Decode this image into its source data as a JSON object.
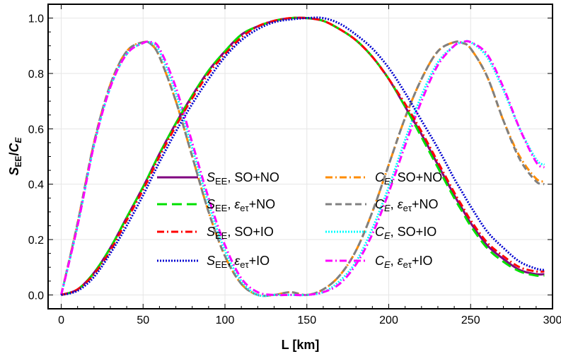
{
  "chart_data": {
    "type": "line",
    "xlabel": "L [km]",
    "ylabel_main": "S",
    "ylabel_main_sub": "EE",
    "ylabel_sep": "/",
    "ylabel_second": "C",
    "ylabel_second_sub": "E",
    "xlim": [
      -8,
      300
    ],
    "ylim": [
      -0.05,
      1.05
    ],
    "xticks": [
      0,
      50,
      100,
      150,
      200,
      250,
      300
    ],
    "yticks": [
      0.0,
      0.2,
      0.4,
      0.6,
      0.8,
      1.0
    ],
    "xtick_labels": [
      "0",
      "50",
      "100",
      "150",
      "200",
      "250",
      "300"
    ],
    "ytick_labels": [
      "0.0",
      "0.2",
      "0.4",
      "0.6",
      "0.8",
      "1.0"
    ],
    "grid": true,
    "legend_position": "lower-middle",
    "x": [
      0,
      10,
      20,
      30,
      40,
      50,
      55,
      60,
      70,
      80,
      90,
      100,
      110,
      120,
      130,
      140,
      150,
      160,
      170,
      180,
      190,
      200,
      210,
      220,
      230,
      240,
      245,
      250,
      260,
      270,
      280,
      290,
      295
    ],
    "series": [
      {
        "name": "SEE, SO+NO",
        "legend_main": "S",
        "legend_sub": "EE",
        "legend_rest": ", SO+NO",
        "color": "#800080",
        "dash": "solid",
        "values": [
          0.0,
          0.02,
          0.08,
          0.17,
          0.28,
          0.39,
          0.45,
          0.51,
          0.62,
          0.72,
          0.81,
          0.88,
          0.94,
          0.97,
          0.99,
          1.0,
          1.0,
          0.99,
          0.96,
          0.92,
          0.86,
          0.78,
          0.68,
          0.58,
          0.47,
          0.36,
          0.31,
          0.26,
          0.18,
          0.13,
          0.09,
          0.075,
          0.075
        ]
      },
      {
        "name": "SEE, εeτ+NO",
        "legend_main": "S",
        "legend_sub": "EE",
        "legend_rest_pre": ", ",
        "legend_eps": "ε",
        "legend_eps_sub": "eτ",
        "legend_rest": "+NO",
        "color": "#00e000",
        "dash": "long-dash",
        "values": [
          0.0,
          0.02,
          0.08,
          0.17,
          0.28,
          0.39,
          0.45,
          0.51,
          0.62,
          0.72,
          0.81,
          0.88,
          0.94,
          0.97,
          0.99,
          1.0,
          1.0,
          0.99,
          0.96,
          0.92,
          0.86,
          0.78,
          0.68,
          0.57,
          0.46,
          0.35,
          0.3,
          0.25,
          0.17,
          0.12,
          0.085,
          0.07,
          0.07
        ]
      },
      {
        "name": "SEE, SO+IO",
        "legend_main": "S",
        "legend_sub": "EE",
        "legend_rest": ", SO+IO",
        "color": "#ff0000",
        "dash": "dash-dot",
        "values": [
          0.0,
          0.02,
          0.075,
          0.16,
          0.27,
          0.38,
          0.44,
          0.5,
          0.61,
          0.71,
          0.8,
          0.87,
          0.93,
          0.97,
          0.99,
          1.0,
          1.0,
          0.99,
          0.96,
          0.92,
          0.86,
          0.78,
          0.69,
          0.59,
          0.48,
          0.37,
          0.32,
          0.27,
          0.19,
          0.14,
          0.1,
          0.085,
          0.085
        ]
      },
      {
        "name": "SEE, εeτ+IO",
        "legend_main": "S",
        "legend_sub": "EE",
        "legend_rest_pre": ", ",
        "legend_eps": "ε",
        "legend_eps_sub": "eτ",
        "legend_rest": "+IO",
        "color": "#0000d0",
        "dash": "dotted",
        "values": [
          0.0,
          0.015,
          0.065,
          0.15,
          0.25,
          0.36,
          0.42,
          0.48,
          0.59,
          0.69,
          0.78,
          0.86,
          0.92,
          0.96,
          0.985,
          0.995,
          1.0,
          1.0,
          0.98,
          0.94,
          0.89,
          0.82,
          0.73,
          0.63,
          0.53,
          0.42,
          0.37,
          0.32,
          0.23,
          0.17,
          0.12,
          0.095,
          0.09
        ]
      },
      {
        "name": "CE, SO+NO",
        "legend_main": "C",
        "legend_sub": "E",
        "legend_rest": ", SO+NO",
        "color": "#ff8c00",
        "dash": "dash-dot",
        "values": [
          0.0,
          0.26,
          0.55,
          0.76,
          0.88,
          0.913,
          0.905,
          0.86,
          0.7,
          0.5,
          0.3,
          0.14,
          0.04,
          0.0,
          0.0,
          0.01,
          0.0,
          0.02,
          0.07,
          0.16,
          0.3,
          0.47,
          0.64,
          0.78,
          0.88,
          0.913,
          0.91,
          0.89,
          0.79,
          0.63,
          0.5,
          0.42,
          0.41
        ]
      },
      {
        "name": "CE, εeτ+NO",
        "legend_main": "C",
        "legend_sub": "E",
        "legend_rest_pre": ", ",
        "legend_eps": "ε",
        "legend_eps_sub": "eτ",
        "legend_rest": "+NO",
        "color": "#808080",
        "dash": "dash",
        "values": [
          0.0,
          0.26,
          0.55,
          0.76,
          0.88,
          0.913,
          0.905,
          0.86,
          0.7,
          0.5,
          0.3,
          0.14,
          0.04,
          0.0,
          0.0,
          0.01,
          0.0,
          0.02,
          0.07,
          0.16,
          0.3,
          0.47,
          0.64,
          0.78,
          0.88,
          0.913,
          0.91,
          0.89,
          0.79,
          0.63,
          0.49,
          0.41,
          0.4
        ]
      },
      {
        "name": "CE, SO+IO",
        "legend_main": "C",
        "legend_sub": "E",
        "legend_rest": ", SO+IO",
        "color": "#00ffff",
        "dash": "dotted",
        "values": [
          0.0,
          0.25,
          0.54,
          0.75,
          0.87,
          0.91,
          0.91,
          0.88,
          0.73,
          0.53,
          0.33,
          0.16,
          0.05,
          0.0,
          0.0,
          0.0,
          0.0,
          0.01,
          0.05,
          0.12,
          0.24,
          0.39,
          0.56,
          0.72,
          0.84,
          0.9,
          0.912,
          0.913,
          0.86,
          0.74,
          0.6,
          0.49,
          0.47
        ]
      },
      {
        "name": "CE, εeτ+IO",
        "legend_main": "C",
        "legend_sub": "E",
        "legend_rest_pre": ", ",
        "legend_eps": "ε",
        "legend_eps_sub": "eτ",
        "legend_rest": "+IO",
        "color": "#ff00ff",
        "dash": "dash-dot",
        "values": [
          0.0,
          0.25,
          0.54,
          0.75,
          0.87,
          0.91,
          0.913,
          0.89,
          0.75,
          0.55,
          0.35,
          0.18,
          0.06,
          0.01,
          0.0,
          0.0,
          0.0,
          0.01,
          0.04,
          0.11,
          0.22,
          0.37,
          0.54,
          0.7,
          0.83,
          0.9,
          0.913,
          0.913,
          0.87,
          0.75,
          0.6,
          0.48,
          0.46
        ]
      }
    ]
  }
}
